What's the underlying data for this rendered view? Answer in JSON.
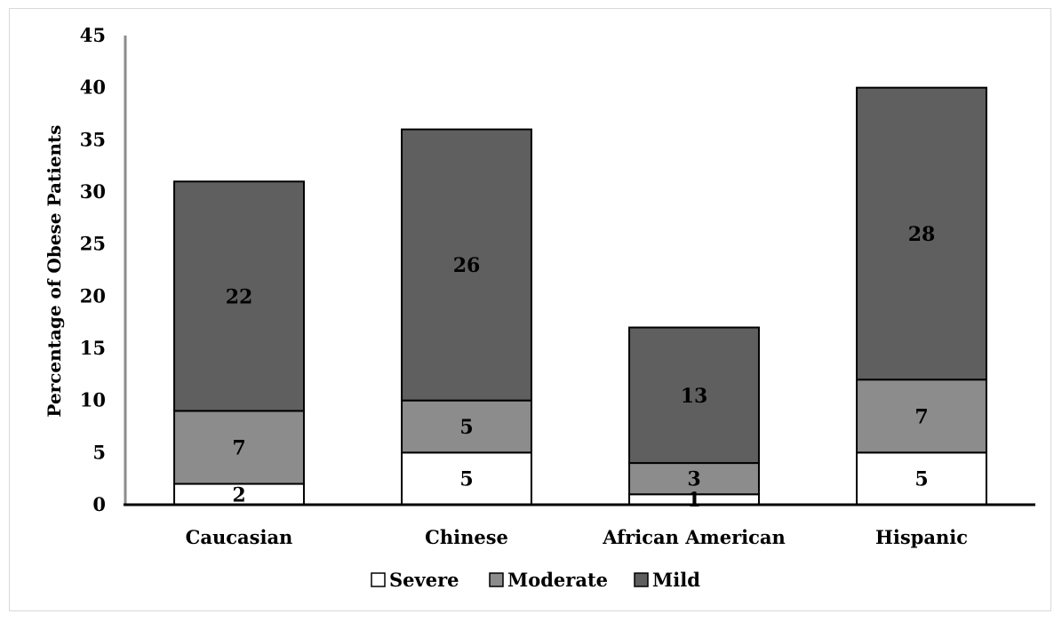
{
  "chart_data": {
    "type": "bar",
    "stacked": true,
    "title": "",
    "xlabel": "",
    "ylabel": "Percentage of Obese Patients",
    "ylim": [
      0,
      45
    ],
    "yticks": [
      0,
      5,
      10,
      15,
      20,
      25,
      30,
      35,
      40,
      45
    ],
    "grid": false,
    "legend_position": "bottom",
    "categories": [
      "Caucasian",
      "Chinese",
      "African American",
      "Hispanic"
    ],
    "series": [
      {
        "name": "Severe",
        "values": [
          2,
          5,
          1,
          5
        ],
        "color": "#ffffff"
      },
      {
        "name": "Moderate",
        "values": [
          7,
          5,
          3,
          7
        ],
        "color": "#8c8c8c"
      },
      {
        "name": "Mild",
        "values": [
          22,
          26,
          13,
          28
        ],
        "color": "#5f5f5f"
      }
    ]
  }
}
